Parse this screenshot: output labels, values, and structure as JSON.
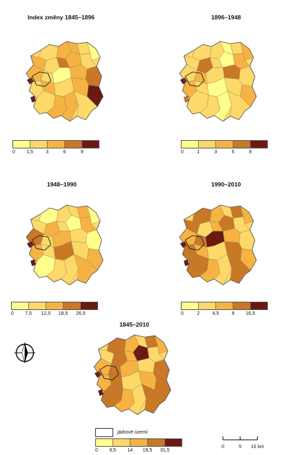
{
  "panels": [
    {
      "title": "Index změny 1845–1896",
      "ticks": [
        "0",
        "1,5",
        "3",
        "6",
        "9"
      ],
      "colors": [
        "#ffff8c",
        "#fdd96a",
        "#f6b344",
        "#c97826",
        "#6b1a12"
      ],
      "region_fill_classes": [
        1,
        2,
        2,
        1,
        0,
        2,
        1,
        3,
        2,
        1,
        2,
        1,
        0,
        2,
        3,
        1,
        2,
        1,
        2,
        4
      ],
      "highlight_classes": [
        4,
        4
      ]
    },
    {
      "title": "1896–1948",
      "ticks": [
        "0",
        "1",
        "3",
        "5",
        "8"
      ],
      "colors": [
        "#ffff8c",
        "#fdd96a",
        "#f6b344",
        "#c97826",
        "#6b1a12"
      ],
      "region_fill_classes": [
        1,
        1,
        0,
        1,
        2,
        1,
        3,
        1,
        0,
        2,
        1,
        2,
        1,
        3,
        1,
        2,
        1,
        0,
        1,
        2
      ],
      "highlight_classes": [
        4,
        3
      ]
    },
    {
      "title": "1948–1990",
      "ticks": [
        "0",
        "7,5",
        "12,5",
        "18,5",
        "26,5"
      ],
      "colors": [
        "#ffff8c",
        "#fdd96a",
        "#f6b344",
        "#c97826",
        "#6b1a12"
      ],
      "region_fill_classes": [
        0,
        1,
        1,
        2,
        0,
        1,
        2,
        1,
        0,
        2,
        3,
        1,
        2,
        1,
        0,
        2,
        1,
        3,
        1,
        2
      ],
      "highlight_classes": [
        4,
        4
      ]
    },
    {
      "title": "1990–2010",
      "ticks": [
        "0",
        "2",
        "4,5",
        "9",
        "16,5"
      ],
      "colors": [
        "#ffff8c",
        "#fdd96a",
        "#f6b344",
        "#c97826",
        "#6b1a12"
      ],
      "region_fill_classes": [
        3,
        2,
        1,
        3,
        2,
        3,
        1,
        2,
        3,
        1,
        2,
        3,
        4,
        2,
        1,
        3,
        2,
        1,
        3,
        2
      ],
      "highlight_classes": [
        4,
        4
      ]
    },
    {
      "title": "1845–2010",
      "ticks": [
        "0",
        "9,5",
        "14",
        "19,5",
        "31,5"
      ],
      "colors": [
        "#ffff8c",
        "#fdd96a",
        "#f6b344",
        "#c97826",
        "#6b1a12"
      ],
      "region_fill_classes": [
        3,
        2,
        1,
        3,
        2,
        1,
        3,
        2,
        4,
        1,
        2,
        3,
        2,
        1,
        3,
        2,
        3,
        1,
        2,
        3
      ],
      "highlight_classes": [
        4,
        4
      ]
    }
  ],
  "core_legend": {
    "label": "jádrové území"
  },
  "scale_bar": {
    "labels": [
      "0",
      "5",
      "10 km"
    ]
  },
  "north_arrow": {
    "icon": "north-arrow-icon"
  },
  "colors": {
    "outline": "#555555",
    "core_outline": "#222222"
  }
}
